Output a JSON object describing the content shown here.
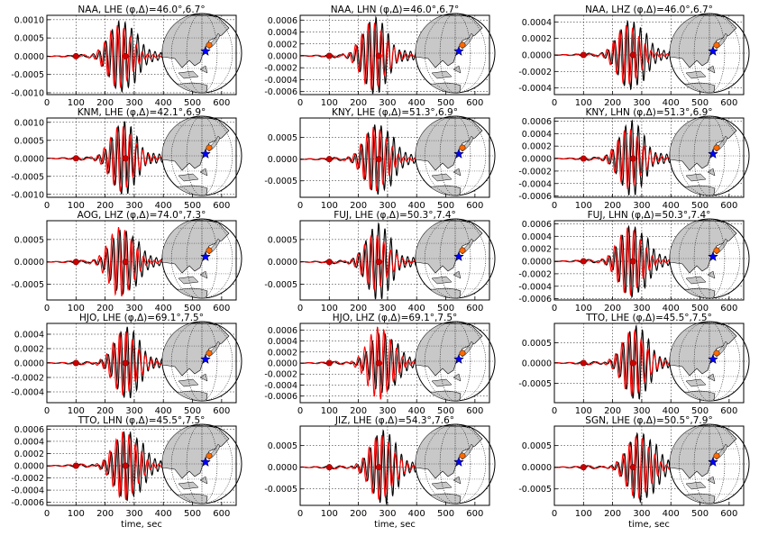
{
  "figure": {
    "xlabel": "time, sec",
    "colors": {
      "observed": "#000000",
      "synthetic": "#ff0000",
      "marker": "#cc0000",
      "star": "#0000ff",
      "land": "#c8c8c8",
      "ocean": "#ffffff"
    }
  },
  "chart_data": [
    {
      "type": "line",
      "title": "NAA, LHE (φ,Δ)=46.0°,6.7°",
      "xlim": [
        0,
        650
      ],
      "ylim": [
        -0.00105,
        0.00112
      ],
      "xticks": [
        "0",
        "100",
        "200",
        "300",
        "400",
        "500",
        "600"
      ],
      "yticks": [
        {
          "v": 0.001,
          "l": "0.0010"
        },
        {
          "v": 0.0005,
          "l": "0.0005"
        },
        {
          "v": 0,
          "l": "0.0000"
        },
        {
          "v": -0.0005,
          "l": "-0.0005"
        },
        {
          "v": -0.001,
          "l": "-0.0010"
        }
      ],
      "markers_x": [
        100,
        270
      ],
      "peak_t": 245,
      "amp_obs": 0.00098,
      "amp_syn": 0.00085,
      "period": 22
    },
    {
      "type": "line",
      "title": "NAA, LHN (φ,Δ)=46.0°,6.7°",
      "xlim": [
        0,
        650
      ],
      "ylim": [
        -0.00065,
        0.00068
      ],
      "xticks": [
        "0",
        "100",
        "200",
        "300",
        "400",
        "500",
        "600"
      ],
      "yticks": [
        {
          "v": 0.0006,
          "l": "0.0006"
        },
        {
          "v": 0.0004,
          "l": "0.0004"
        },
        {
          "v": 0.0002,
          "l": "0.0002"
        },
        {
          "v": 0,
          "l": "0.0000"
        },
        {
          "v": -0.0002,
          "l": "-0.0002"
        },
        {
          "v": -0.0004,
          "l": "-0.0004"
        },
        {
          "v": -0.0006,
          "l": "-0.0006"
        }
      ],
      "markers_x": [
        100,
        270
      ],
      "peak_t": 248,
      "amp_obs": 0.00062,
      "amp_syn": 0.00058,
      "period": 22
    },
    {
      "type": "line",
      "title": "NAA, LHZ (φ,Δ)=46.0°,6.7°",
      "xlim": [
        0,
        650
      ],
      "ylim": [
        -0.00048,
        0.00048
      ],
      "xticks": [
        "0",
        "100",
        "200",
        "300",
        "400",
        "500",
        "600"
      ],
      "yticks": [
        {
          "v": 0.0004,
          "l": "0.0004"
        },
        {
          "v": 0.0002,
          "l": "0.0002"
        },
        {
          "v": 0,
          "l": "0.0000"
        },
        {
          "v": -0.0002,
          "l": "-0.0002"
        },
        {
          "v": -0.0004,
          "l": "-0.0004"
        }
      ],
      "markers_x": [
        100,
        270
      ],
      "peak_t": 250,
      "amp_obs": 0.00042,
      "amp_syn": 0.00036,
      "period": 22
    },
    {
      "type": "line",
      "title": "KNM, LHE (φ,Δ)=42.1°,6.9°",
      "xlim": [
        0,
        650
      ],
      "ylim": [
        -0.00108,
        0.00112
      ],
      "xticks": [
        "0",
        "100",
        "200",
        "300",
        "400",
        "500",
        "600"
      ],
      "yticks": [
        {
          "v": 0.001,
          "l": "0.0010"
        },
        {
          "v": 0.0005,
          "l": "0.0005"
        },
        {
          "v": 0,
          "l": "0.0000"
        },
        {
          "v": -0.0005,
          "l": "-0.0005"
        },
        {
          "v": -0.001,
          "l": "-0.0010"
        }
      ],
      "markers_x": [
        100,
        270
      ],
      "peak_t": 255,
      "amp_obs": 0.00098,
      "amp_syn": 0.00092,
      "period": 22
    },
    {
      "type": "line",
      "title": "KNY, LHE (φ,Δ)=51.3°,6.9°",
      "xlim": [
        0,
        650
      ],
      "ylim": [
        -0.00088,
        0.00095
      ],
      "xticks": [
        "0",
        "100",
        "200",
        "300",
        "400",
        "500",
        "600"
      ],
      "yticks": [
        {
          "v": 0.0005,
          "l": "0.0005"
        },
        {
          "v": 0,
          "l": "0.0000"
        },
        {
          "v": -0.0005,
          "l": "-0.0005"
        }
      ],
      "markers_x": [
        100,
        270
      ],
      "peak_t": 255,
      "amp_obs": 0.00082,
      "amp_syn": 0.00074,
      "period": 22
    },
    {
      "type": "line",
      "title": "KNY, LHN (φ,Δ)=51.3°,6.9°",
      "xlim": [
        0,
        650
      ],
      "ylim": [
        -0.00062,
        0.00065
      ],
      "xticks": [
        "0",
        "100",
        "200",
        "300",
        "400",
        "500",
        "600"
      ],
      "yticks": [
        {
          "v": 0.0006,
          "l": "0.0006"
        },
        {
          "v": 0.0004,
          "l": "0.0004"
        },
        {
          "v": 0.0002,
          "l": "0.0002"
        },
        {
          "v": 0,
          "l": "0.0000"
        },
        {
          "v": -0.0002,
          "l": "-0.0002"
        },
        {
          "v": -0.0004,
          "l": "-0.0004"
        },
        {
          "v": -0.0006,
          "l": "-0.0006"
        }
      ],
      "markers_x": [
        100,
        270
      ],
      "peak_t": 255,
      "amp_obs": 0.00058,
      "amp_syn": 0.00048,
      "period": 22
    },
    {
      "type": "line",
      "title": "AOG, LHZ (φ,Δ)=74.0°,7.3°",
      "xlim": [
        0,
        650
      ],
      "ylim": [
        -0.00085,
        0.00092
      ],
      "xticks": [
        "0",
        "100",
        "200",
        "300",
        "400",
        "500",
        "600"
      ],
      "yticks": [
        {
          "v": 0.0005,
          "l": "0.0005"
        },
        {
          "v": 0,
          "l": "0.0000"
        },
        {
          "v": -0.0005,
          "l": "-0.0005"
        }
      ],
      "markers_x": [
        100,
        270
      ],
      "peak_t": 250,
      "amp_obs": 0.00072,
      "amp_syn": 0.00078,
      "period": 22
    },
    {
      "type": "line",
      "title": "FUJ, LHE (φ,Δ)=50.3°,7.4°",
      "xlim": [
        0,
        650
      ],
      "ylim": [
        -0.00085,
        0.00092
      ],
      "xticks": [
        "0",
        "100",
        "200",
        "300",
        "400",
        "500",
        "600"
      ],
      "yticks": [
        {
          "v": 0.0005,
          "l": "0.0005"
        },
        {
          "v": 0,
          "l": "0.0000"
        },
        {
          "v": -0.0005,
          "l": "-0.0005"
        }
      ],
      "markers_x": [
        100,
        270
      ],
      "peak_t": 258,
      "amp_obs": 0.00082,
      "amp_syn": 0.00062,
      "period": 22
    },
    {
      "type": "line",
      "title": "FUJ, LHN (φ,Δ)=50.3°,7.4°",
      "xlim": [
        0,
        650
      ],
      "ylim": [
        -0.00062,
        0.00065
      ],
      "xticks": [
        "0",
        "100",
        "200",
        "300",
        "400",
        "500",
        "600"
      ],
      "yticks": [
        {
          "v": 0.0006,
          "l": "0.0006"
        },
        {
          "v": 0.0004,
          "l": "0.0004"
        },
        {
          "v": 0.0002,
          "l": "0.0002"
        },
        {
          "v": 0,
          "l": "0.0000"
        },
        {
          "v": -0.0002,
          "l": "-0.0002"
        },
        {
          "v": -0.0004,
          "l": "-0.0004"
        },
        {
          "v": -0.0006,
          "l": "-0.0006"
        }
      ],
      "markers_x": [
        100,
        270
      ],
      "peak_t": 255,
      "amp_obs": 0.00058,
      "amp_syn": 0.00054,
      "period": 22
    },
    {
      "type": "line",
      "title": "HJO, LHE (φ,Δ)=69.1°,7.5°",
      "xlim": [
        0,
        650
      ],
      "ylim": [
        -0.00055,
        0.00055
      ],
      "xticks": [
        "0",
        "100",
        "200",
        "300",
        "400",
        "500",
        "600"
      ],
      "yticks": [
        {
          "v": 0.0004,
          "l": "0.0004"
        },
        {
          "v": 0.0002,
          "l": "0.0002"
        },
        {
          "v": 0,
          "l": "0.0000"
        },
        {
          "v": -0.0002,
          "l": "-0.0002"
        },
        {
          "v": -0.0004,
          "l": "-0.0004"
        }
      ],
      "markers_x": [
        100,
        270
      ],
      "peak_t": 265,
      "amp_obs": 0.00048,
      "amp_syn": 0.00045,
      "period": 22
    },
    {
      "type": "line",
      "title": "HJO, LHZ (φ,Δ)=69.1°,7.5°",
      "xlim": [
        0,
        650
      ],
      "ylim": [
        -0.00072,
        0.00072
      ],
      "xticks": [
        "0",
        "100",
        "200",
        "300",
        "400",
        "500",
        "600"
      ],
      "yticks": [
        {
          "v": 0.0006,
          "l": "0.0006"
        },
        {
          "v": 0.0004,
          "l": "0.0004"
        },
        {
          "v": 0.0002,
          "l": "0.0002"
        },
        {
          "v": 0,
          "l": "0.0000"
        },
        {
          "v": -0.0002,
          "l": "-0.0002"
        },
        {
          "v": -0.0004,
          "l": "-0.0004"
        },
        {
          "v": -0.0006,
          "l": "-0.0006"
        }
      ],
      "markers_x": [
        100,
        270
      ],
      "peak_t": 270,
      "amp_obs": 0.00055,
      "amp_syn": 0.00066,
      "period": 22
    },
    {
      "type": "line",
      "title": "TTO, LHE (φ,Δ)=45.5°,7.5°",
      "xlim": [
        0,
        650
      ],
      "ylim": [
        -0.00098,
        0.00098
      ],
      "xticks": [
        "0",
        "100",
        "200",
        "300",
        "400",
        "500",
        "600"
      ],
      "yticks": [
        {
          "v": 0.0005,
          "l": "0.0005"
        },
        {
          "v": 0,
          "l": "0.0000"
        },
        {
          "v": -0.0005,
          "l": "-0.0005"
        }
      ],
      "markers_x": [
        100,
        270
      ],
      "peak_t": 270,
      "amp_obs": 0.00088,
      "amp_syn": 0.00082,
      "period": 22
    },
    {
      "type": "line",
      "title": "TTO, LHN (φ,Δ)=45.5°,7.5°",
      "xlim": [
        0,
        650
      ],
      "ylim": [
        -0.00065,
        0.00065
      ],
      "xticks": [
        "0",
        "100",
        "200",
        "300",
        "400",
        "500",
        "600"
      ],
      "yticks": [
        {
          "v": 0.0006,
          "l": "0.0006"
        },
        {
          "v": 0.0004,
          "l": "0.0004"
        },
        {
          "v": 0.0002,
          "l": "0.0002"
        },
        {
          "v": 0,
          "l": "0.0000"
        },
        {
          "v": -0.0002,
          "l": "-0.0002"
        },
        {
          "v": -0.0004,
          "l": "-0.0004"
        },
        {
          "v": -0.0006,
          "l": "-0.0006"
        }
      ],
      "markers_x": [
        100,
        270
      ],
      "peak_t": 265,
      "amp_obs": 0.00058,
      "amp_syn": 0.00056,
      "period": 22
    },
    {
      "type": "line",
      "title": "JIZ, LHE (φ,Δ)=54.3°,7.6°",
      "xlim": [
        0,
        650
      ],
      "ylim": [
        -0.00088,
        0.00095
      ],
      "xticks": [
        "0",
        "100",
        "200",
        "300",
        "400",
        "500",
        "600"
      ],
      "yticks": [
        {
          "v": 0.0005,
          "l": "0.0005"
        },
        {
          "v": 0,
          "l": "0.0000"
        },
        {
          "v": -0.0005,
          "l": "-0.0005"
        }
      ],
      "markers_x": [
        100,
        270
      ],
      "peak_t": 275,
      "amp_obs": 0.00082,
      "amp_syn": 0.00076,
      "period": 22
    },
    {
      "type": "line",
      "title": "SGN, LHE (φ,Δ)=50.5°,7.9°",
      "xlim": [
        0,
        650
      ],
      "ylim": [
        -0.00088,
        0.00095
      ],
      "xticks": [
        "0",
        "100",
        "200",
        "300",
        "400",
        "500",
        "600"
      ],
      "yticks": [
        {
          "v": 0.0005,
          "l": "0.0005"
        },
        {
          "v": 0,
          "l": "0.0000"
        },
        {
          "v": -0.0005,
          "l": "-0.0005"
        }
      ],
      "markers_x": [
        100,
        270
      ],
      "peak_t": 285,
      "amp_obs": 0.00082,
      "amp_syn": 0.00072,
      "period": 22
    }
  ]
}
